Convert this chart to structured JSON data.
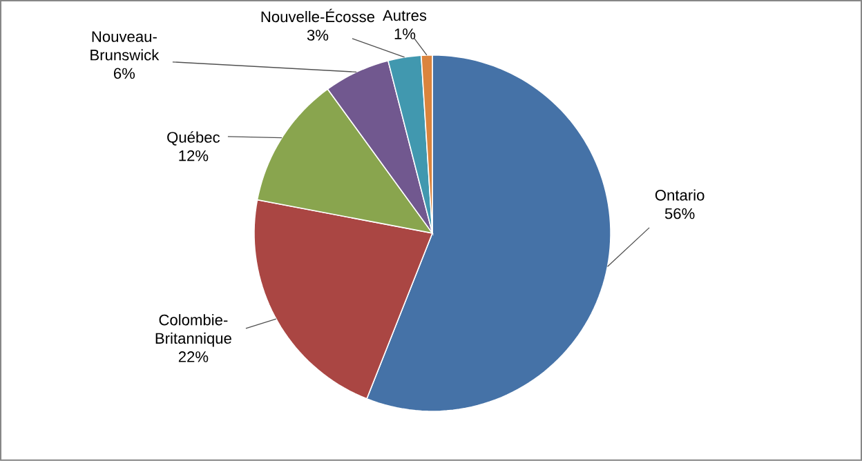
{
  "chart_data": {
    "type": "pie",
    "categories": [
      "Ontario",
      "Colombie-Britannique",
      "Québec",
      "Nouveau-Brunswick",
      "Nouvelle-Écosse",
      "Autres"
    ],
    "values": [
      56,
      22,
      12,
      6,
      3,
      1
    ],
    "value_labels": [
      "56%",
      "22%",
      "12%",
      "6%",
      "3%",
      "1%"
    ],
    "colors": [
      "#4572a7",
      "#aa4643",
      "#89a54e",
      "#71588f",
      "#4198af",
      "#db843d"
    ]
  }
}
